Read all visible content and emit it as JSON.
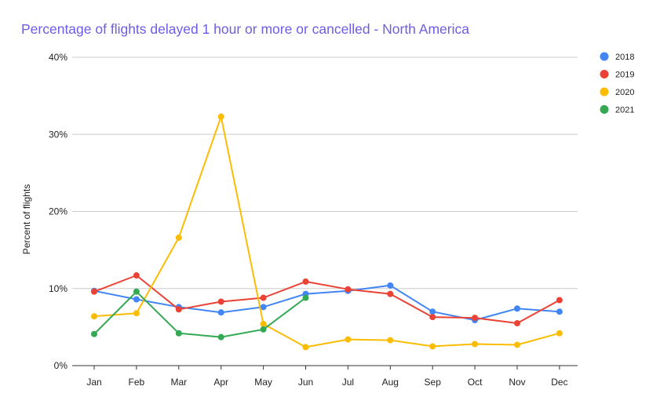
{
  "chart_data": {
    "type": "line",
    "title": "Percentage of flights delayed 1 hour or more or cancelled - North America",
    "xlabel": "",
    "ylabel": "Percent of flights",
    "categories": [
      "Jan",
      "Feb",
      "Mar",
      "Apr",
      "May",
      "Jun",
      "Jul",
      "Aug",
      "Sep",
      "Oct",
      "Nov",
      "Dec"
    ],
    "ylim": [
      0,
      40
    ],
    "yticks": [
      0,
      10,
      20,
      30,
      40
    ],
    "ytick_labels": [
      "0%",
      "10%",
      "20%",
      "30%",
      "40%"
    ],
    "grid": true,
    "legend_position": "right",
    "series": [
      {
        "name": "2018",
        "color": "#4285f4",
        "values": [
          9.7,
          8.6,
          7.6,
          6.9,
          7.6,
          9.3,
          9.7,
          10.4,
          7.0,
          5.9,
          7.4,
          7.0
        ]
      },
      {
        "name": "2019",
        "color": "#ea4335",
        "values": [
          9.6,
          11.7,
          7.3,
          8.3,
          8.8,
          10.9,
          9.9,
          9.3,
          6.3,
          6.2,
          5.5,
          8.5
        ]
      },
      {
        "name": "2020",
        "color": "#fbbc04",
        "values": [
          6.4,
          6.8,
          16.6,
          32.3,
          5.4,
          2.4,
          3.4,
          3.3,
          2.5,
          2.8,
          2.7,
          4.2
        ]
      },
      {
        "name": "2021",
        "color": "#34a853",
        "values": [
          4.1,
          9.6,
          4.2,
          3.7,
          4.7,
          8.8,
          null,
          null,
          null,
          null,
          null,
          null
        ]
      }
    ]
  }
}
